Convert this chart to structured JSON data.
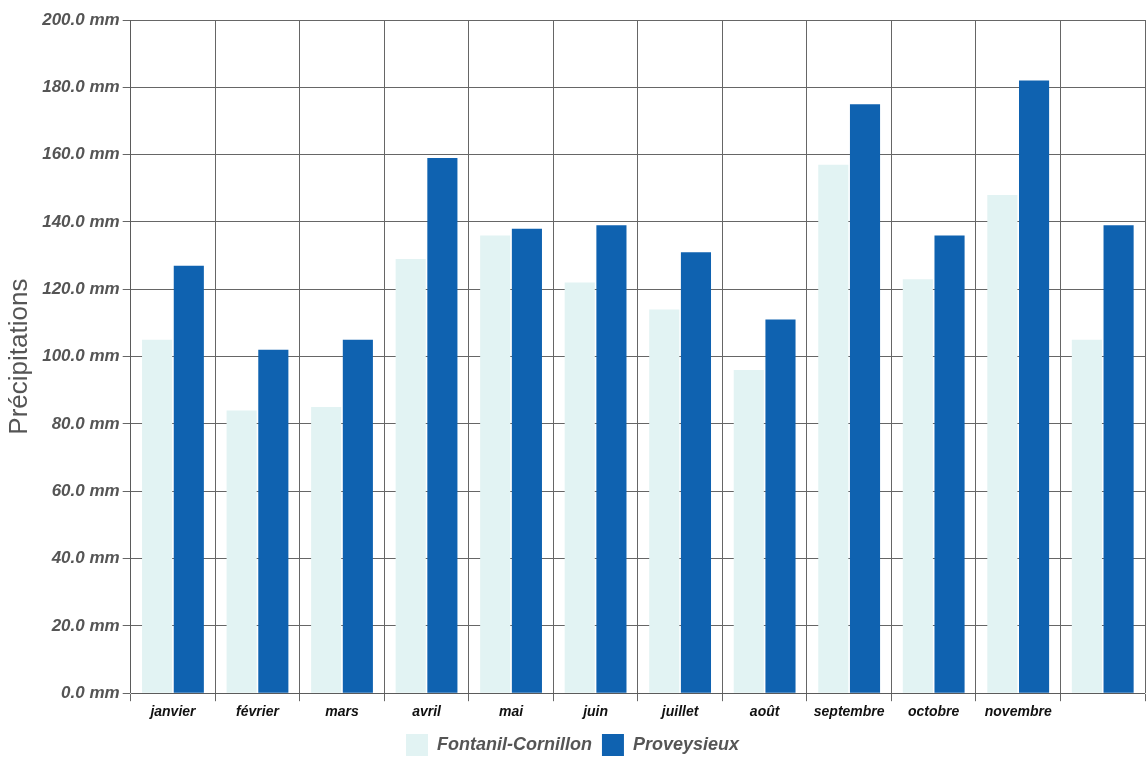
{
  "chart_data": {
    "type": "bar",
    "ylabel": "Précipitations",
    "categories": [
      "janvier",
      "février",
      "mars",
      "avril",
      "mai",
      "juin",
      "juillet",
      "août",
      "septembre",
      "octobre",
      "novembre",
      null
    ],
    "series": [
      {
        "name": "Fontanil-Cornillon",
        "color": "#e2f3f3",
        "values": [
          105,
          84,
          85,
          129,
          136,
          122,
          114,
          96,
          157,
          123,
          148,
          105
        ]
      },
      {
        "name": "Proveysieux",
        "color": "#0f62b0",
        "values": [
          127,
          102,
          105,
          159,
          138,
          139,
          131,
          111,
          175,
          136,
          182,
          139
        ]
      }
    ],
    "ylim": [
      0,
      200
    ],
    "yticks": [
      {
        "value": 0,
        "label": "0.0 mm"
      },
      {
        "value": 20,
        "label": "20.0 mm"
      },
      {
        "value": 40,
        "label": "40.0 mm"
      },
      {
        "value": 60,
        "label": "60.0 mm"
      },
      {
        "value": 80,
        "label": "80.0 mm"
      },
      {
        "value": 100,
        "label": "100.0 mm"
      },
      {
        "value": 120,
        "label": "120.0 mm"
      },
      {
        "value": 140,
        "label": "140.0 mm"
      },
      {
        "value": 160,
        "label": "160.0 mm"
      },
      {
        "value": 180,
        "label": "180.0 mm"
      },
      {
        "value": 200,
        "label": "200.0 mm"
      }
    ],
    "grid": true,
    "legend": "bottom"
  }
}
